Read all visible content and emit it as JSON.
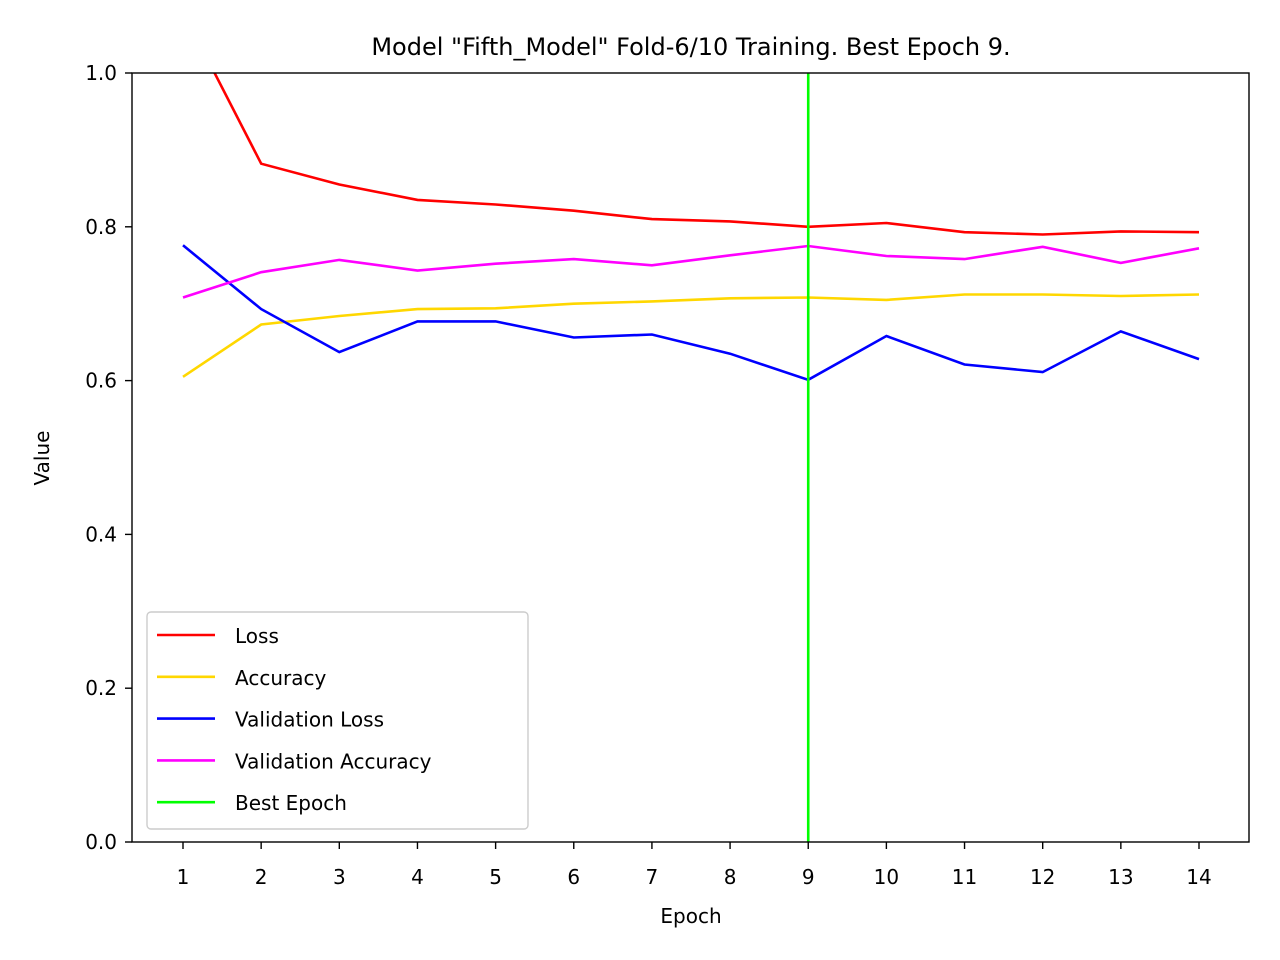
{
  "chart_data": {
    "type": "line",
    "title": "Model \"Fifth_Model\" Fold-6/10 Training. Best Epoch 9.",
    "xlabel": "Epoch",
    "ylabel": "Value",
    "x": [
      1,
      2,
      3,
      4,
      5,
      6,
      7,
      8,
      9,
      10,
      11,
      12,
      13,
      14
    ],
    "x_tick_labels": [
      "1",
      "2",
      "3",
      "4",
      "5",
      "6",
      "7",
      "8",
      "9",
      "10",
      "11",
      "12",
      "13",
      "14"
    ],
    "ylim": [
      0.0,
      1.0
    ],
    "y_ticks": [
      0.0,
      0.2,
      0.4,
      0.6,
      0.8,
      1.0
    ],
    "y_tick_labels": [
      "0.0",
      "0.2",
      "0.4",
      "0.6",
      "0.8",
      "1.0"
    ],
    "grid": false,
    "legend_position": "lower-left",
    "series": [
      {
        "name": "Loss",
        "color": "#ff0000",
        "values": [
          1.08,
          0.882,
          0.855,
          0.835,
          0.829,
          0.821,
          0.81,
          0.807,
          0.8,
          0.805,
          0.793,
          0.79,
          0.794,
          0.793
        ]
      },
      {
        "name": "Accuracy",
        "color": "#ffd700",
        "values": [
          0.605,
          0.673,
          0.684,
          0.693,
          0.694,
          0.7,
          0.703,
          0.707,
          0.708,
          0.705,
          0.712,
          0.712,
          0.71,
          0.712
        ]
      },
      {
        "name": "Validation Loss",
        "color": "#0000ff",
        "values": [
          0.776,
          0.693,
          0.637,
          0.677,
          0.677,
          0.656,
          0.66,
          0.635,
          0.601,
          0.658,
          0.621,
          0.611,
          0.664,
          0.628
        ]
      },
      {
        "name": "Validation  Accuracy",
        "color": "#ff00ff",
        "values": [
          0.708,
          0.741,
          0.757,
          0.743,
          0.752,
          0.758,
          0.75,
          0.763,
          0.775,
          0.762,
          0.758,
          0.774,
          0.753,
          0.772
        ]
      }
    ],
    "best_epoch": {
      "name": "Best Epoch",
      "x": 9,
      "color": "#00ff00"
    }
  }
}
